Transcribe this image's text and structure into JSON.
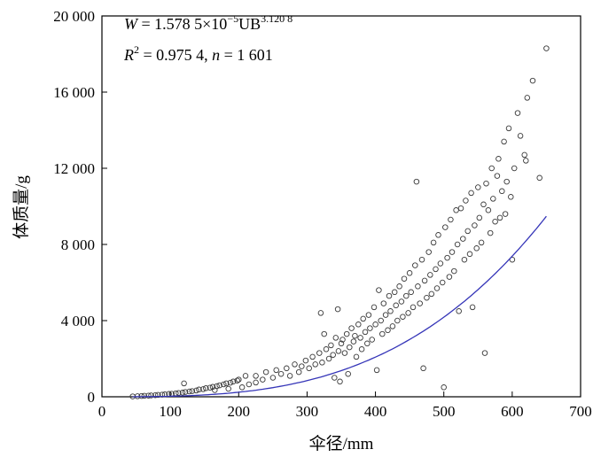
{
  "chart_data": {
    "type": "scatter",
    "xlabel": "伞径/mm",
    "ylabel": "体质量/g",
    "xlim": [
      0,
      700
    ],
    "ylim": [
      0,
      20000
    ],
    "x_ticks": [
      0,
      100,
      200,
      300,
      400,
      500,
      600,
      700
    ],
    "y_ticks": [
      0,
      4000,
      8000,
      12000,
      16000,
      20000
    ],
    "x_tick_labels": [
      "0",
      "100",
      "200",
      "300",
      "400",
      "500",
      "600",
      "700"
    ],
    "y_tick_labels": [
      "0",
      "4 000",
      "8 000",
      "12 000",
      "16 000",
      "20 000"
    ],
    "annotation": {
      "line1_prefix": "W",
      "line1_eq": " = 1.578 5×10",
      "line1_exp1": "−5",
      "line1_mid": "UB",
      "line1_exp2": "3.120 8",
      "line2_prefix": "R",
      "line2_sup": "2",
      "line2_rest": " = 0.975 4, ",
      "line2_n": "n",
      "line2_end": " = 1 601"
    },
    "fit": {
      "a": 1.5785e-05,
      "b": 3.1208,
      "x_range": [
        45,
        650
      ]
    },
    "series": [
      {
        "marker": "open-circle",
        "points": [
          [
            45,
            20
          ],
          [
            52,
            30
          ],
          [
            58,
            40
          ],
          [
            62,
            50
          ],
          [
            68,
            60
          ],
          [
            72,
            70
          ],
          [
            78,
            85
          ],
          [
            82,
            100
          ],
          [
            88,
            110
          ],
          [
            92,
            125
          ],
          [
            98,
            150
          ],
          [
            102,
            160
          ],
          [
            108,
            180
          ],
          [
            112,
            200
          ],
          [
            118,
            220
          ],
          [
            122,
            250
          ],
          [
            128,
            280
          ],
          [
            132,
            300
          ],
          [
            138,
            330
          ],
          [
            142,
            380
          ],
          [
            148,
            400
          ],
          [
            152,
            450
          ],
          [
            158,
            480
          ],
          [
            162,
            520
          ],
          [
            168,
            560
          ],
          [
            172,
            600
          ],
          [
            178,
            650
          ],
          [
            182,
            700
          ],
          [
            188,
            740
          ],
          [
            192,
            800
          ],
          [
            198,
            850
          ],
          [
            120,
            700
          ],
          [
            200,
            900
          ],
          [
            210,
            1100
          ],
          [
            165,
            350
          ],
          [
            185,
            420
          ],
          [
            205,
            500
          ],
          [
            215,
            650
          ],
          [
            225,
            750
          ],
          [
            235,
            900
          ],
          [
            225,
            1100
          ],
          [
            240,
            1300
          ],
          [
            250,
            1000
          ],
          [
            255,
            1400
          ],
          [
            262,
            1200
          ],
          [
            270,
            1500
          ],
          [
            275,
            1100
          ],
          [
            282,
            1700
          ],
          [
            288,
            1300
          ],
          [
            292,
            1600
          ],
          [
            298,
            1900
          ],
          [
            303,
            1500
          ],
          [
            308,
            2100
          ],
          [
            312,
            1700
          ],
          [
            318,
            2300
          ],
          [
            320,
            4400
          ],
          [
            322,
            1800
          ],
          [
            325,
            3300
          ],
          [
            328,
            2500
          ],
          [
            332,
            2000
          ],
          [
            335,
            2700
          ],
          [
            338,
            2200
          ],
          [
            340,
            1000
          ],
          [
            342,
            3100
          ],
          [
            345,
            4600
          ],
          [
            346,
            2400
          ],
          [
            348,
            800
          ],
          [
            350,
            2800
          ],
          [
            352,
            3000
          ],
          [
            355,
            2300
          ],
          [
            358,
            3300
          ],
          [
            360,
            1200
          ],
          [
            362,
            2600
          ],
          [
            365,
            3600
          ],
          [
            368,
            2900
          ],
          [
            370,
            3200
          ],
          [
            372,
            2100
          ],
          [
            375,
            3800
          ],
          [
            378,
            3100
          ],
          [
            380,
            2500
          ],
          [
            382,
            4100
          ],
          [
            385,
            3400
          ],
          [
            388,
            2800
          ],
          [
            390,
            4300
          ],
          [
            392,
            3600
          ],
          [
            395,
            3000
          ],
          [
            398,
            4700
          ],
          [
            400,
            3800
          ],
          [
            402,
            1400
          ],
          [
            405,
            5600
          ],
          [
            408,
            4000
          ],
          [
            410,
            3300
          ],
          [
            412,
            4900
          ],
          [
            415,
            4300
          ],
          [
            418,
            3500
          ],
          [
            420,
            5300
          ],
          [
            422,
            4500
          ],
          [
            425,
            3700
          ],
          [
            428,
            5500
          ],
          [
            430,
            4800
          ],
          [
            432,
            4000
          ],
          [
            435,
            5800
          ],
          [
            438,
            5000
          ],
          [
            440,
            4200
          ],
          [
            442,
            6200
          ],
          [
            445,
            5300
          ],
          [
            448,
            4400
          ],
          [
            450,
            6500
          ],
          [
            452,
            5500
          ],
          [
            455,
            4700
          ],
          [
            458,
            6900
          ],
          [
            460,
            11300
          ],
          [
            462,
            5800
          ],
          [
            465,
            4900
          ],
          [
            468,
            7200
          ],
          [
            470,
            1500
          ],
          [
            472,
            6100
          ],
          [
            475,
            5200
          ],
          [
            478,
            7600
          ],
          [
            480,
            6400
          ],
          [
            482,
            5400
          ],
          [
            485,
            8100
          ],
          [
            488,
            6700
          ],
          [
            490,
            5700
          ],
          [
            492,
            8500
          ],
          [
            495,
            7000
          ],
          [
            498,
            6000
          ],
          [
            500,
            500
          ],
          [
            502,
            8900
          ],
          [
            505,
            7300
          ],
          [
            508,
            6300
          ],
          [
            510,
            9300
          ],
          [
            512,
            7600
          ],
          [
            515,
            6600
          ],
          [
            518,
            9800
          ],
          [
            520,
            8000
          ],
          [
            522,
            4500
          ],
          [
            525,
            9900
          ],
          [
            528,
            8300
          ],
          [
            530,
            7200
          ],
          [
            532,
            10300
          ],
          [
            535,
            8700
          ],
          [
            538,
            7500
          ],
          [
            540,
            10700
          ],
          [
            542,
            4700
          ],
          [
            545,
            9000
          ],
          [
            548,
            7800
          ],
          [
            550,
            11000
          ],
          [
            552,
            9400
          ],
          [
            555,
            8100
          ],
          [
            558,
            10100
          ],
          [
            560,
            2300
          ],
          [
            562,
            11200
          ],
          [
            565,
            9800
          ],
          [
            568,
            8600
          ],
          [
            570,
            12000
          ],
          [
            572,
            10400
          ],
          [
            575,
            9200
          ],
          [
            578,
            11600
          ],
          [
            580,
            12500
          ],
          [
            582,
            9400
          ],
          [
            585,
            10800
          ],
          [
            588,
            13400
          ],
          [
            590,
            9600
          ],
          [
            592,
            11300
          ],
          [
            595,
            14100
          ],
          [
            598,
            10500
          ],
          [
            600,
            7200
          ],
          [
            603,
            12000
          ],
          [
            608,
            14900
          ],
          [
            612,
            13700
          ],
          [
            618,
            12700
          ],
          [
            620,
            12400
          ],
          [
            622,
            15700
          ],
          [
            630,
            16600
          ],
          [
            640,
            11500
          ],
          [
            650,
            18300
          ]
        ]
      }
    ]
  }
}
